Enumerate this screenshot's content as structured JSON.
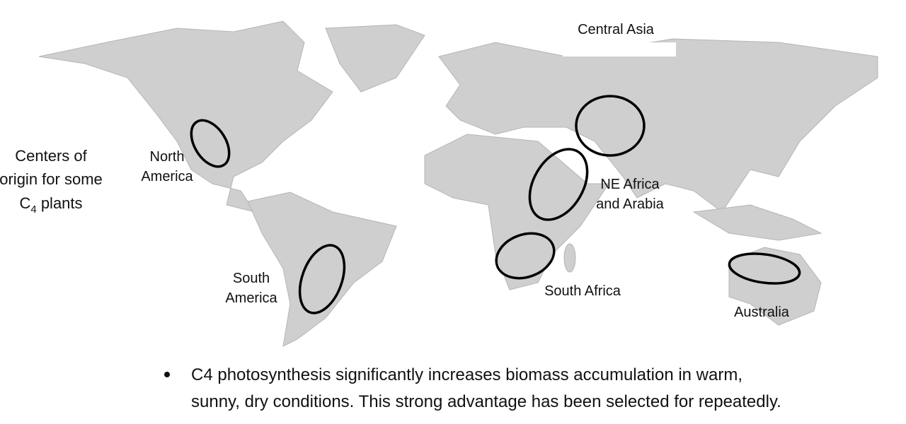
{
  "side_label": {
    "lines": [
      "Centers of",
      "origin for some"
    ],
    "c4_line": {
      "base": "C",
      "subscript": "4",
      "rest": " plants"
    }
  },
  "map": {
    "regions": [
      {
        "lines": [
          "Central Asia"
        ]
      },
      {
        "lines": [
          "North",
          "America"
        ]
      },
      {
        "lines": [
          "NE Africa",
          "and Arabia"
        ]
      },
      {
        "lines": [
          "South",
          "America"
        ]
      },
      {
        "lines": [
          "South Africa"
        ]
      },
      {
        "lines": [
          "Australia"
        ]
      }
    ]
  },
  "bullet": {
    "lines": [
      "C4 photosynthesis significantly increases biomass accumulation in warm,",
      "sunny, dry conditions. This strong advantage has been selected for repeatedly."
    ]
  }
}
